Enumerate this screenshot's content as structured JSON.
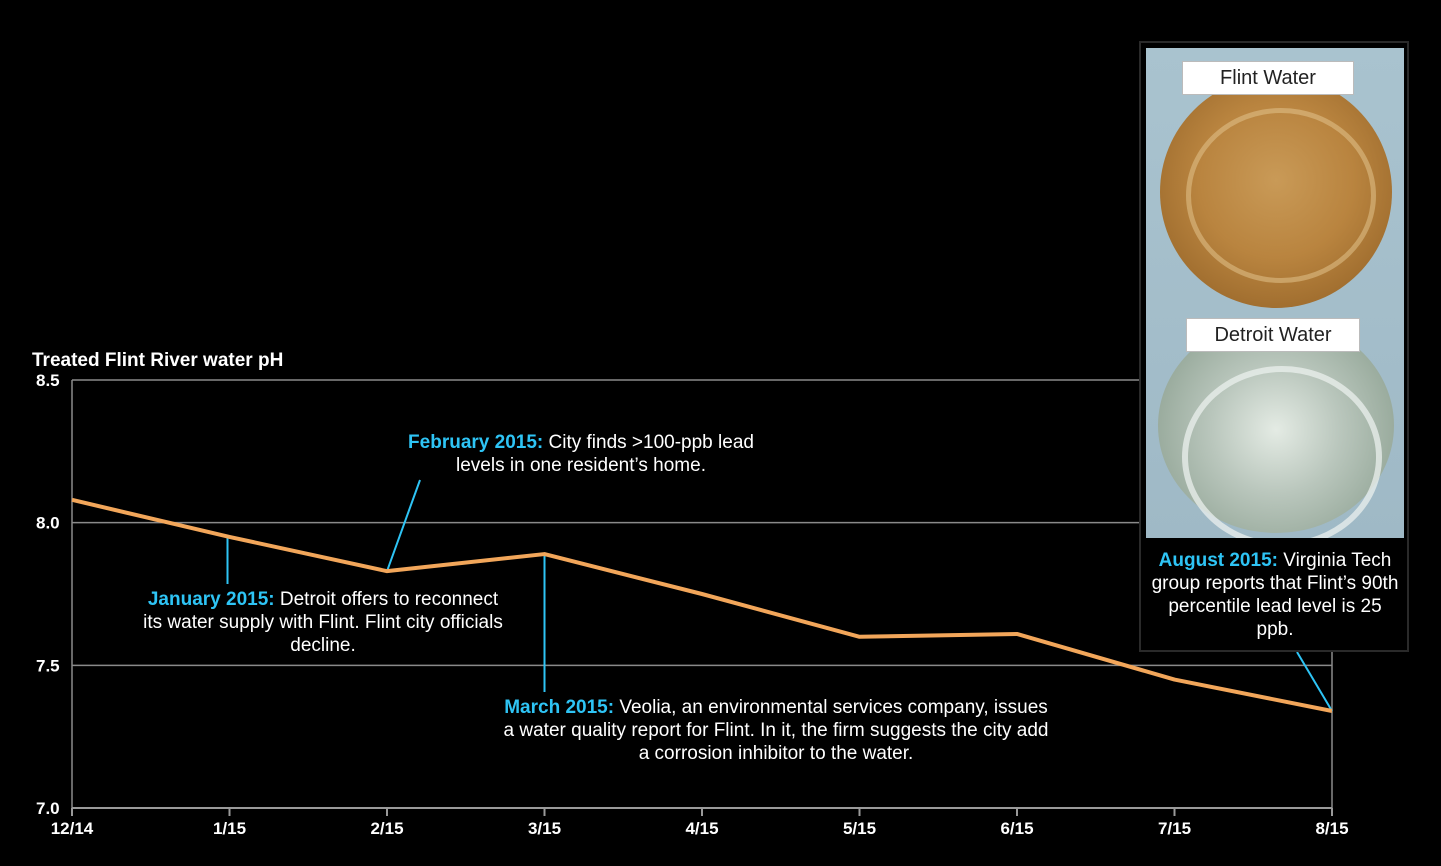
{
  "chart_data": {
    "type": "line",
    "ylabel": "Treated Flint River water pH",
    "categories": [
      "12/14",
      "1/15",
      "2/15",
      "3/15",
      "4/15",
      "5/15",
      "6/15",
      "7/15",
      "8/15"
    ],
    "x": [
      "12/14",
      "1/15",
      "2/15",
      "3/15",
      "4/15",
      "5/15",
      "6/15",
      "7/15",
      "8/15"
    ],
    "series": [
      {
        "values": [
          8.08,
          7.95,
          7.83,
          7.89,
          7.75,
          7.6,
          7.61,
          7.45,
          7.34
        ]
      }
    ],
    "ylim": [
      7.0,
      8.5
    ],
    "yticks": [
      "8.5",
      "8.0",
      "7.5",
      "7.0"
    ],
    "ytick_values": [
      8.5,
      8.0,
      7.5,
      7.0
    ],
    "grid": true,
    "line_color": "#f2a65a",
    "annotations": [
      {
        "label": "January 2015:",
        "text": "Detroit offers to reconnect its water supply with Flint. Flint city officials decline."
      },
      {
        "label": "February 2015:",
        "text": "City finds >100-ppb lead levels in one resident’s home."
      },
      {
        "label": "March 2015:",
        "text": "Veolia, an environmental services company, issues a water quality report for Flint. In it, the firm suggests the city add a corrosion inhibitor to the water."
      },
      {
        "label": "August 2015:",
        "text": "Virginia Tech group reports that Flint’s 90th percentile lead level is 25 ppb."
      }
    ]
  },
  "photo": {
    "top_label": "Flint Water",
    "bottom_label": "Detroit Water"
  },
  "colors": {
    "background": "#000000",
    "accent": "#2ec4f5",
    "line": "#f2a65a",
    "flint_water": "#b07b3c",
    "detroit_water": "#a8b6a8"
  }
}
